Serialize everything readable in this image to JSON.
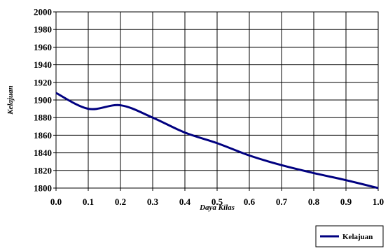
{
  "chart_data": {
    "type": "line",
    "title": "",
    "xlabel": "Daya Kilas",
    "ylabel": "Kelajuan",
    "xlim": [
      0.0,
      1.0
    ],
    "ylim": [
      1800,
      2000
    ],
    "x_ticks": [
      "0.0",
      "0.1",
      "0.2",
      "0.3",
      "0.4",
      "0.5",
      "0.6",
      "0.7",
      "0.8",
      "0.9",
      "1.0"
    ],
    "y_ticks": [
      "1800",
      "1820",
      "1840",
      "1860",
      "1880",
      "1900",
      "1920",
      "1940",
      "1960",
      "1980",
      "2000"
    ],
    "grid": true,
    "legend_position": "bottom-right",
    "series": [
      {
        "name": "Kelajuan",
        "color": "#000080",
        "x": [
          0.0,
          0.1,
          0.2,
          0.3,
          0.4,
          0.5,
          0.6,
          0.7,
          0.8,
          0.9,
          1.0
        ],
        "y": [
          1908,
          1890,
          1894,
          1880,
          1863,
          1851,
          1837,
          1826,
          1817,
          1809,
          1800
        ]
      }
    ]
  }
}
